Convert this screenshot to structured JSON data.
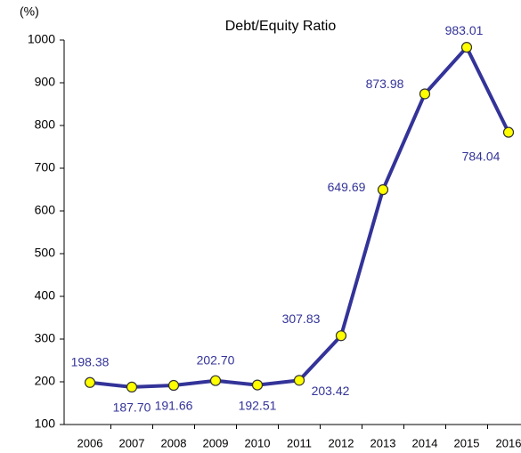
{
  "chart_data": {
    "type": "line",
    "title": "Debt/Equity Ratio",
    "y_unit": "(%)",
    "categories": [
      "2006",
      "2007",
      "2008",
      "2009",
      "2010",
      "2011",
      "2012",
      "2013",
      "2014",
      "2015",
      "2016"
    ],
    "series": [
      {
        "name": "Debt/Equity Ratio",
        "color": "#333399",
        "marker_color": "#ffff00",
        "values": [
          198.38,
          187.7,
          191.66,
          202.7,
          192.51,
          203.42,
          307.83,
          649.69,
          873.98,
          983.01,
          784.04
        ],
        "value_labels": [
          "198.38",
          "187.70",
          "191.66",
          "202.70",
          "192.51",
          "203.42",
          "307.83",
          "649.69",
          "873.98",
          "983.01",
          "784.04"
        ]
      }
    ],
    "ylim": [
      100,
      1000
    ],
    "yticks": [
      100,
      200,
      300,
      400,
      500,
      600,
      700,
      800,
      900,
      1000
    ],
    "grid": false
  }
}
